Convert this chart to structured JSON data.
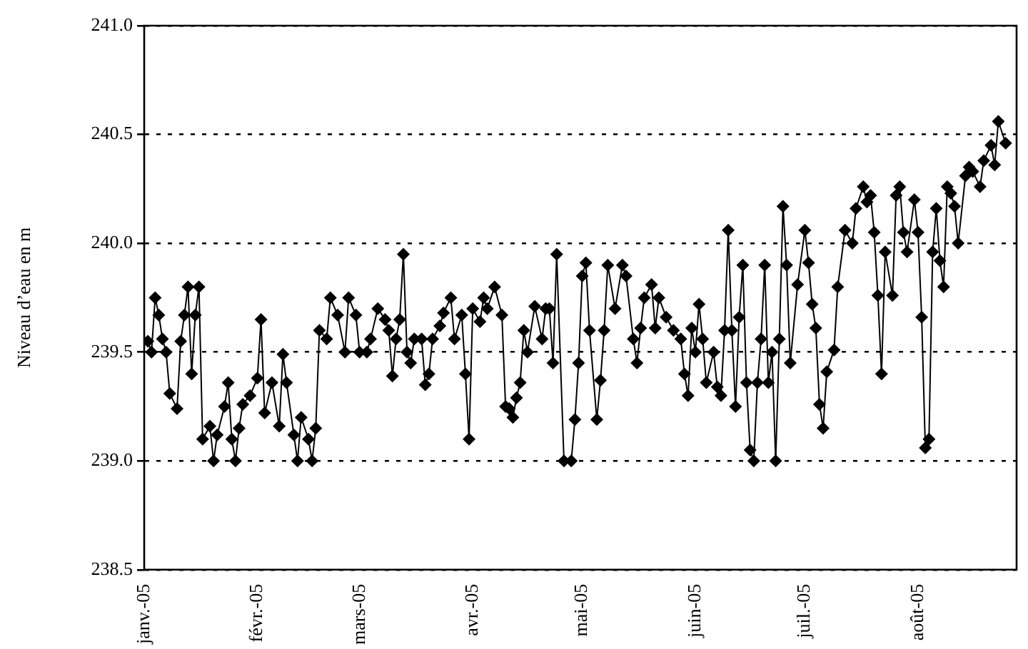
{
  "chart_data": {
    "type": "line",
    "ylabel": "Niveau d’eau en m",
    "color": "#000000",
    "marker": "diamond",
    "line_style": "solid",
    "grid": "y",
    "legend": false,
    "x": [
      "2005-01-02",
      "2005-01-03",
      "2005-01-04",
      "2005-01-05",
      "2005-01-06",
      "2005-01-07",
      "2005-01-08",
      "2005-01-10",
      "2005-01-11",
      "2005-01-12",
      "2005-01-13",
      "2005-01-14",
      "2005-01-15",
      "2005-01-16",
      "2005-01-17",
      "2005-01-19",
      "2005-01-20",
      "2005-01-21",
      "2005-01-23",
      "2005-01-24",
      "2005-01-25",
      "2005-01-26",
      "2005-01-27",
      "2005-01-28",
      "2005-01-30",
      "2005-02-01",
      "2005-02-02",
      "2005-02-03",
      "2005-02-05",
      "2005-02-07",
      "2005-02-08",
      "2005-02-09",
      "2005-02-11",
      "2005-02-12",
      "2005-02-13",
      "2005-02-15",
      "2005-02-16",
      "2005-02-17",
      "2005-02-18",
      "2005-02-20",
      "2005-02-21",
      "2005-02-23",
      "2005-02-25",
      "2005-02-26",
      "2005-02-28",
      "2005-03-01",
      "2005-03-03",
      "2005-03-04",
      "2005-03-06",
      "2005-03-08",
      "2005-03-09",
      "2005-03-10",
      "2005-03-11",
      "2005-03-12",
      "2005-03-13",
      "2005-03-14",
      "2005-03-15",
      "2005-03-16",
      "2005-03-18",
      "2005-03-19",
      "2005-03-20",
      "2005-03-21",
      "2005-03-23",
      "2005-03-24",
      "2005-03-26",
      "2005-03-27",
      "2005-03-29",
      "2005-03-30",
      "2005-03-31",
      "2005-04-01",
      "2005-04-03",
      "2005-04-04",
      "2005-04-05",
      "2005-04-07",
      "2005-04-09",
      "2005-04-10",
      "2005-04-11",
      "2005-04-12",
      "2005-04-13",
      "2005-04-14",
      "2005-04-15",
      "2005-04-16",
      "2005-04-18",
      "2005-04-20",
      "2005-04-21",
      "2005-04-22",
      "2005-04-23",
      "2005-04-24",
      "2005-04-26",
      "2005-04-28",
      "2005-04-29",
      "2005-04-30",
      "2005-05-01",
      "2005-05-02",
      "2005-05-03",
      "2005-05-05",
      "2005-05-06",
      "2005-05-07",
      "2005-05-08",
      "2005-05-10",
      "2005-05-12",
      "2005-05-13",
      "2005-05-15",
      "2005-05-16",
      "2005-05-17",
      "2005-05-18",
      "2005-05-20",
      "2005-05-21",
      "2005-05-22",
      "2005-05-24",
      "2005-05-26",
      "2005-05-28",
      "2005-05-29",
      "2005-05-30",
      "2005-05-31",
      "2005-06-01",
      "2005-06-02",
      "2005-06-03",
      "2005-06-04",
      "2005-06-06",
      "2005-06-07",
      "2005-06-08",
      "2005-06-09",
      "2005-06-10",
      "2005-06-11",
      "2005-06-12",
      "2005-06-13",
      "2005-06-14",
      "2005-06-15",
      "2005-06-16",
      "2005-06-17",
      "2005-06-18",
      "2005-06-19",
      "2005-06-20",
      "2005-06-21",
      "2005-06-22",
      "2005-06-23",
      "2005-06-24",
      "2005-06-25",
      "2005-06-26",
      "2005-06-27",
      "2005-06-29",
      "2005-07-01",
      "2005-07-02",
      "2005-07-03",
      "2005-07-04",
      "2005-07-05",
      "2005-07-06",
      "2005-07-07",
      "2005-07-09",
      "2005-07-10",
      "2005-07-12",
      "2005-07-14",
      "2005-07-15",
      "2005-07-17",
      "2005-07-18",
      "2005-07-19",
      "2005-07-20",
      "2005-07-21",
      "2005-07-22",
      "2005-07-23",
      "2005-07-25",
      "2005-07-26",
      "2005-07-27",
      "2005-07-28",
      "2005-07-29",
      "2005-07-31",
      "2005-08-01",
      "2005-08-02",
      "2005-08-03",
      "2005-08-04",
      "2005-08-05",
      "2005-08-06",
      "2005-08-07",
      "2005-08-08",
      "2005-08-09",
      "2005-08-10",
      "2005-08-11",
      "2005-08-12",
      "2005-08-14",
      "2005-08-15",
      "2005-08-16",
      "2005-08-18",
      "2005-08-19",
      "2005-08-21",
      "2005-08-22",
      "2005-08-23",
      "2005-08-25"
    ],
    "values": [
      239.55,
      239.5,
      239.75,
      239.67,
      239.56,
      239.5,
      239.31,
      239.24,
      239.55,
      239.67,
      239.8,
      239.4,
      239.67,
      239.8,
      239.1,
      239.16,
      239.0,
      239.12,
      239.25,
      239.36,
      239.1,
      239.0,
      239.15,
      239.26,
      239.3,
      239.38,
      239.65,
      239.22,
      239.36,
      239.16,
      239.49,
      239.36,
      239.12,
      239.0,
      239.2,
      239.1,
      239.0,
      239.15,
      239.6,
      239.56,
      239.75,
      239.67,
      239.5,
      239.75,
      239.67,
      239.5,
      239.5,
      239.56,
      239.7,
      239.65,
      239.6,
      239.39,
      239.56,
      239.65,
      239.95,
      239.5,
      239.45,
      239.56,
      239.56,
      239.35,
      239.4,
      239.56,
      239.62,
      239.68,
      239.75,
      239.56,
      239.67,
      239.4,
      239.1,
      239.7,
      239.64,
      239.75,
      239.7,
      239.8,
      239.67,
      239.25,
      239.24,
      239.2,
      239.29,
      239.36,
      239.6,
      239.5,
      239.71,
      239.56,
      239.7,
      239.7,
      239.45,
      239.95,
      239.0,
      239.0,
      239.19,
      239.45,
      239.85,
      239.91,
      239.6,
      239.19,
      239.37,
      239.6,
      239.9,
      239.7,
      239.9,
      239.85,
      239.56,
      239.45,
      239.61,
      239.75,
      239.81,
      239.61,
      239.75,
      239.66,
      239.6,
      239.56,
      239.4,
      239.3,
      239.61,
      239.5,
      239.72,
      239.56,
      239.36,
      239.5,
      239.34,
      239.3,
      239.6,
      240.06,
      239.6,
      239.25,
      239.66,
      239.9,
      239.36,
      239.05,
      239.0,
      239.36,
      239.56,
      239.9,
      239.36,
      239.5,
      239.0,
      239.56,
      240.17,
      239.9,
      239.45,
      239.81,
      240.06,
      239.91,
      239.72,
      239.61,
      239.26,
      239.15,
      239.41,
      239.51,
      239.8,
      240.06,
      240.0,
      240.16,
      240.26,
      240.19,
      240.22,
      240.05,
      239.76,
      239.4,
      239.96,
      239.76,
      240.22,
      240.26,
      240.05,
      239.96,
      240.2,
      240.05,
      239.66,
      239.06,
      239.1,
      239.96,
      240.16,
      239.92,
      239.8,
      240.26,
      240.23,
      240.17,
      240.0,
      240.31,
      240.35,
      240.33,
      240.26,
      240.38,
      240.45,
      240.36,
      240.56,
      240.46
    ],
    "xlim": [
      "2005-01-01",
      "2005-08-28"
    ],
    "xticks": [
      {
        "value": "2005-01-01",
        "label": "janv.-05"
      },
      {
        "value": "2005-02-01",
        "label": "févr.-05"
      },
      {
        "value": "2005-03-01",
        "label": "mars-05"
      },
      {
        "value": "2005-04-01",
        "label": "avr.-05"
      },
      {
        "value": "2005-05-01",
        "label": "mai-05"
      },
      {
        "value": "2005-06-01",
        "label": "juin-05"
      },
      {
        "value": "2005-07-01",
        "label": "juil.-05"
      },
      {
        "value": "2005-08-01",
        "label": "août-05"
      }
    ],
    "ylim": [
      238.5,
      241.0
    ],
    "yticks": [
      {
        "value": 238.5,
        "label": "238.5"
      },
      {
        "value": 239.0,
        "label": "239.0"
      },
      {
        "value": 239.5,
        "label": "239.5"
      },
      {
        "value": 240.0,
        "label": "240.0"
      },
      {
        "value": 240.5,
        "label": "240.5"
      },
      {
        "value": 241.0,
        "label": "241.0"
      }
    ]
  }
}
